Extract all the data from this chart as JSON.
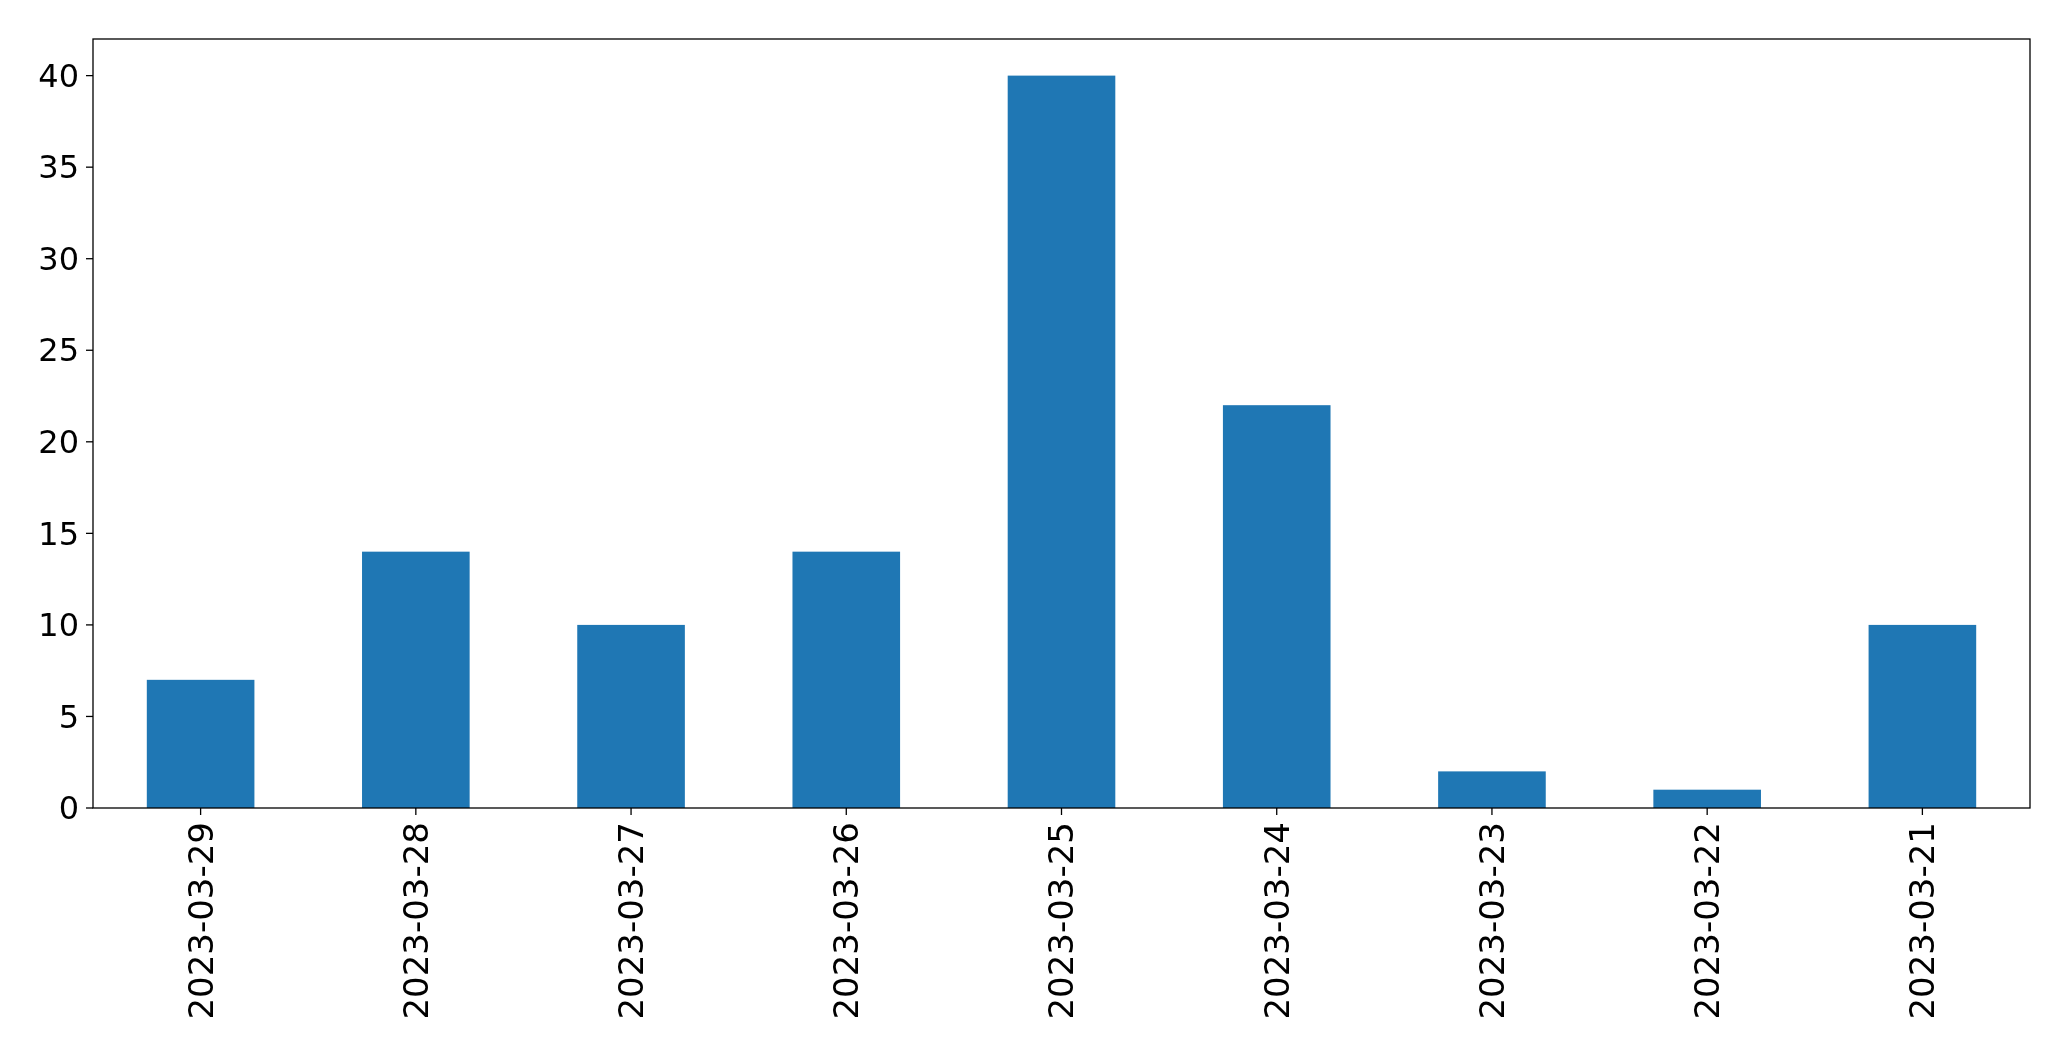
{
  "chart_data": {
    "type": "bar",
    "categories": [
      "2023-03-29",
      "2023-03-28",
      "2023-03-27",
      "2023-03-26",
      "2023-03-25",
      "2023-03-24",
      "2023-03-23",
      "2023-03-22",
      "2023-03-21"
    ],
    "values": [
      7,
      14,
      10,
      14,
      40,
      22,
      2,
      1,
      10
    ],
    "color": "#1f77b4",
    "ylim": [
      0,
      42
    ],
    "yticks": [
      0,
      5,
      10,
      15,
      20,
      25,
      30,
      35,
      40
    ]
  }
}
